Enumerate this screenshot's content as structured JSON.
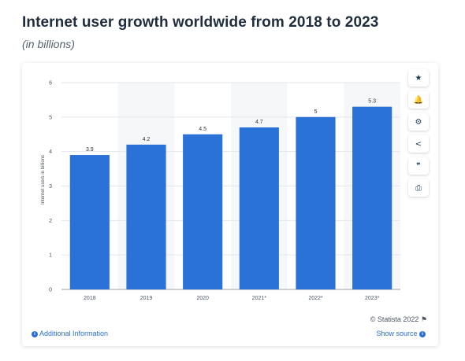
{
  "header": {
    "title": "Internet user growth worldwide from 2018 to 2023",
    "subtitle": "(in billions)"
  },
  "chart_data": {
    "type": "bar",
    "categories": [
      "2018",
      "2019",
      "2020",
      "2021*",
      "2022*",
      "2023*"
    ],
    "values": [
      3.9,
      4.2,
      4.5,
      4.7,
      5,
      5.3
    ],
    "data_labels": [
      "3.9",
      "4.2",
      "4.5",
      "4.7",
      "5",
      "5.3"
    ],
    "ylabel": "Internet users in billions",
    "xlabel": "",
    "ylim": [
      0,
      6
    ],
    "yticks": [
      "0",
      "1",
      "2",
      "3",
      "4",
      "5",
      "6"
    ],
    "grid": true,
    "bar_color": "#2a72d8",
    "legend": "none"
  },
  "toolbar": {
    "items": [
      {
        "icon": "star-icon",
        "glyph": "★"
      },
      {
        "icon": "bell-icon",
        "glyph": "🔔"
      },
      {
        "icon": "gear-icon",
        "glyph": "⚙"
      },
      {
        "icon": "share-icon",
        "glyph": "<"
      },
      {
        "icon": "quote-icon",
        "glyph": "❞"
      },
      {
        "icon": "print-icon",
        "glyph": "⎙"
      }
    ]
  },
  "footer": {
    "credit": "© Statista 2022",
    "flag_glyph": "⚑",
    "additional_info": "Additional Information",
    "show_source": "Show source"
  },
  "colors": {
    "accent": "#2a72d8",
    "link": "#2a6fc9",
    "title": "#1f2d3d"
  }
}
